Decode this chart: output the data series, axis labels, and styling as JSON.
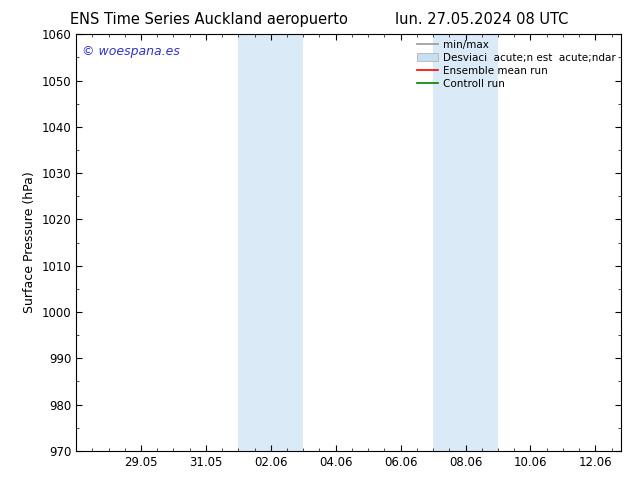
{
  "title_left": "ENS Time Series Auckland aeropuerto",
  "title_right": "lun. 27.05.2024 08 UTC",
  "ylabel": "Surface Pressure (hPa)",
  "ylim": [
    970,
    1060
  ],
  "yticks": [
    970,
    980,
    990,
    1000,
    1010,
    1020,
    1030,
    1040,
    1050,
    1060
  ],
  "xtick_labels": [
    "29.05",
    "31.05",
    "02.06",
    "04.06",
    "06.06",
    "08.06",
    "10.06",
    "12.06"
  ],
  "xtick_positions": [
    2,
    4,
    6,
    8,
    10,
    12,
    14,
    16
  ],
  "xlim": [
    0,
    16.8
  ],
  "shaded_bands": [
    {
      "xmin": 5.0,
      "xmax": 7.0
    },
    {
      "xmin": 11.0,
      "xmax": 13.0
    }
  ],
  "shaded_color": "#daeaf7",
  "watermark_text": "© woespana.es",
  "watermark_color": "#3333cc",
  "legend_label_1": "min/max",
  "legend_label_2": "Desviaci  acute;n est  acute;ndar",
  "legend_label_3": "Ensemble mean run",
  "legend_label_4": "Controll run",
  "legend_color_1": "#999999",
  "legend_color_2": "#c8dff0",
  "legend_color_3": "red",
  "legend_color_4": "green",
  "background_color": "#ffffff",
  "spine_color": "#000000",
  "tick_color": "#000000"
}
